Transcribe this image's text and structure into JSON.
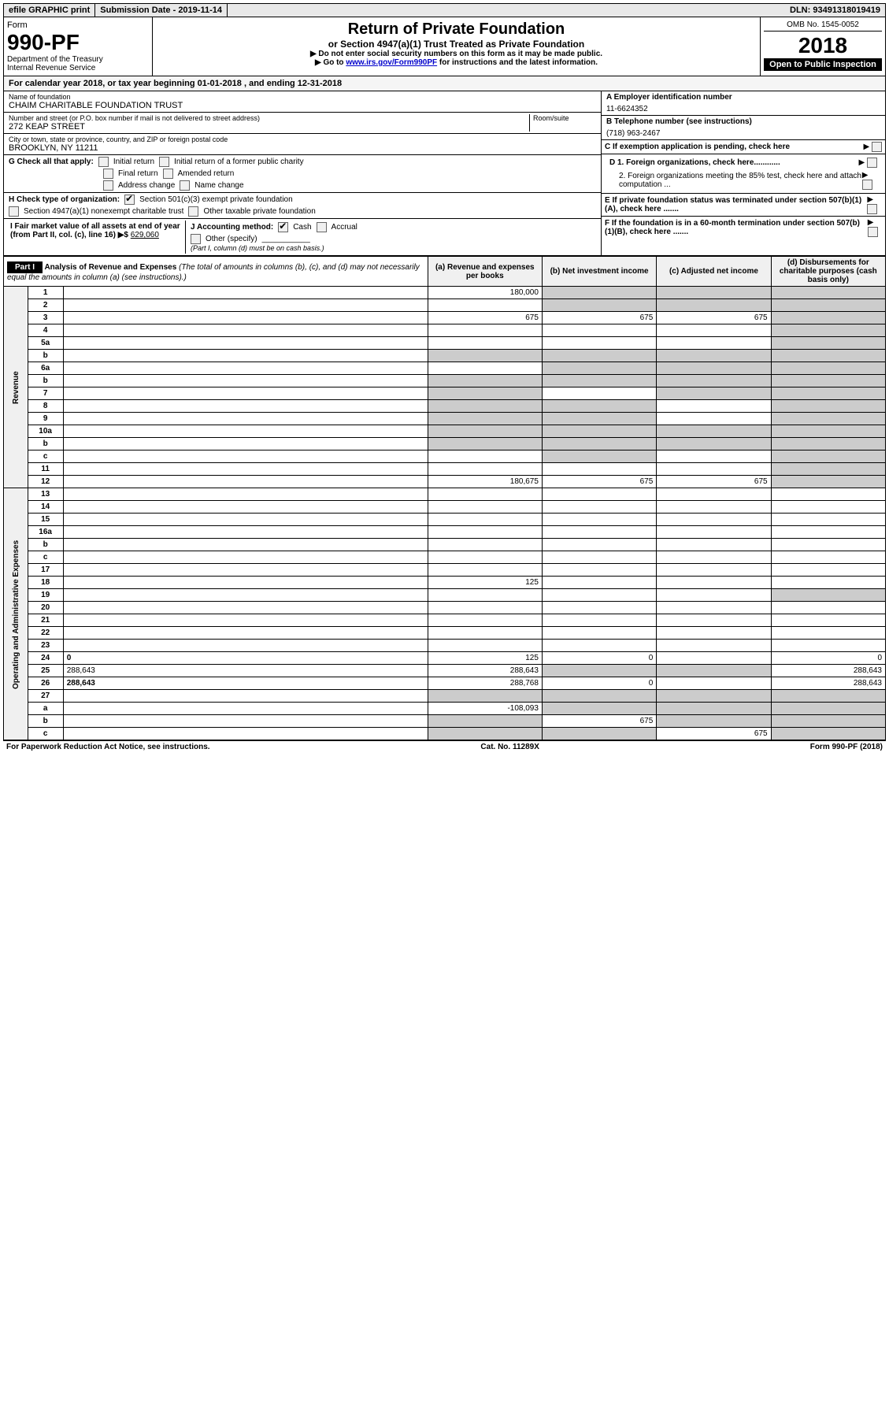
{
  "topbar": {
    "efile": "efile GRAPHIC print",
    "submission": "Submission Date - 2019-11-14",
    "dln": "DLN: 93491318019419"
  },
  "header": {
    "form_word": "Form",
    "form_number": "990-PF",
    "dept": "Department of the Treasury",
    "irs": "Internal Revenue Service",
    "title": "Return of Private Foundation",
    "subtitle": "or Section 4947(a)(1) Trust Treated as Private Foundation",
    "instr1": "▶ Do not enter social security numbers on this form as it may be made public.",
    "instr2_pre": "▶ Go to ",
    "instr2_link": "www.irs.gov/Form990PF",
    "instr2_post": " for instructions and the latest information.",
    "omb": "OMB No. 1545-0052",
    "year": "2018",
    "open": "Open to Public Inspection"
  },
  "calyear": "For calendar year 2018, or tax year beginning 01-01-2018               , and ending 12-31-2018",
  "foundation": {
    "name_label": "Name of foundation",
    "name": "CHAIM CHARITABLE FOUNDATION TRUST",
    "addr_label": "Number and street (or P.O. box number if mail is not delivered to street address)",
    "addr": "272 KEAP STREET",
    "room_label": "Room/suite",
    "city_label": "City or town, state or province, country, and ZIP or foreign postal code",
    "city": "BROOKLYN, NY  11211"
  },
  "right_info": {
    "a_label": "A Employer identification number",
    "a_value": "11-6624352",
    "b_label": "B Telephone number (see instructions)",
    "b_value": "(718) 963-2467",
    "c_label": "C If exemption application is pending, check here",
    "d1_label": "D 1. Foreign organizations, check here............",
    "d2_label": "2. Foreign organizations meeting the 85% test, check here and attach computation ...",
    "e_label": "E  If private foundation status was terminated under section 507(b)(1)(A), check here .......",
    "f_label": "F  If the foundation is in a 60-month termination under section 507(b)(1)(B), check here ......."
  },
  "checks": {
    "g_label": "G Check all that apply:",
    "initial": "Initial return",
    "initial_former": "Initial return of a former public charity",
    "final": "Final return",
    "amended": "Amended return",
    "addr_change": "Address change",
    "name_change": "Name change",
    "h_label": "H Check type of organization:",
    "h_501c3": "Section 501(c)(3) exempt private foundation",
    "h_4947": "Section 4947(a)(1) nonexempt charitable trust",
    "h_other": "Other taxable private foundation",
    "i_label": "I Fair market value of all assets at end of year (from Part II, col. (c), line 16) ▶$",
    "i_value": "629,060",
    "j_label": "J Accounting method:",
    "j_cash": "Cash",
    "j_accrual": "Accrual",
    "j_other": "Other (specify)",
    "j_note": "(Part I, column (d) must be on cash basis.)"
  },
  "part1": {
    "label": "Part I",
    "title": "Analysis of Revenue and Expenses",
    "note": " (The total of amounts in columns (b), (c), and (d) may not necessarily equal the amounts in column (a) (see instructions).)",
    "col_a": "(a)   Revenue and expenses per books",
    "col_b": "(b)  Net investment income",
    "col_c": "(c)  Adjusted net income",
    "col_d": "(d)  Disbursements for charitable purposes (cash basis only)"
  },
  "sections": {
    "revenue": "Revenue",
    "expenses": "Operating and Administrative Expenses"
  },
  "rows": [
    {
      "n": "1",
      "d": "",
      "a": "180,000",
      "b": "",
      "c": "",
      "sb": true,
      "sc": true,
      "sd": true
    },
    {
      "n": "2",
      "d": "",
      "a": "",
      "b": "",
      "c": "",
      "sb": true,
      "sc": true,
      "sd": true
    },
    {
      "n": "3",
      "d": "",
      "a": "675",
      "b": "675",
      "c": "675",
      "sd": true
    },
    {
      "n": "4",
      "d": "",
      "a": "",
      "b": "",
      "c": "",
      "sd": true
    },
    {
      "n": "5a",
      "d": "",
      "a": "",
      "b": "",
      "c": "",
      "sd": true
    },
    {
      "n": "b",
      "d": "",
      "a": "",
      "b": "",
      "c": "",
      "sa": true,
      "sb": true,
      "sc": true,
      "sd": true
    },
    {
      "n": "6a",
      "d": "",
      "a": "",
      "b": "",
      "c": "",
      "sb": true,
      "sc": true,
      "sd": true
    },
    {
      "n": "b",
      "d": "",
      "a": "",
      "b": "",
      "c": "",
      "sa": true,
      "sb": true,
      "sc": true,
      "sd": true
    },
    {
      "n": "7",
      "d": "",
      "a": "",
      "b": "",
      "c": "",
      "sa": true,
      "sc": true,
      "sd": true
    },
    {
      "n": "8",
      "d": "",
      "a": "",
      "b": "",
      "c": "",
      "sa": true,
      "sb": true,
      "sd": true
    },
    {
      "n": "9",
      "d": "",
      "a": "",
      "b": "",
      "c": "",
      "sa": true,
      "sb": true,
      "sd": true
    },
    {
      "n": "10a",
      "d": "",
      "a": "",
      "b": "",
      "c": "",
      "sa": true,
      "sb": true,
      "sc": true,
      "sd": true
    },
    {
      "n": "b",
      "d": "",
      "a": "",
      "b": "",
      "c": "",
      "sa": true,
      "sb": true,
      "sc": true,
      "sd": true
    },
    {
      "n": "c",
      "d": "",
      "a": "",
      "b": "",
      "c": "",
      "sb": true,
      "sd": true
    },
    {
      "n": "11",
      "d": "",
      "a": "",
      "b": "",
      "c": "",
      "sd": true
    },
    {
      "n": "12",
      "d": "",
      "a": "180,675",
      "b": "675",
      "c": "675",
      "bold": true,
      "sd": true
    },
    {
      "n": "13",
      "d": "",
      "a": "",
      "b": "",
      "c": "",
      "sec": "exp"
    },
    {
      "n": "14",
      "d": "",
      "a": "",
      "b": "",
      "c": ""
    },
    {
      "n": "15",
      "d": "",
      "a": "",
      "b": "",
      "c": ""
    },
    {
      "n": "16a",
      "d": "",
      "a": "",
      "b": "",
      "c": ""
    },
    {
      "n": "b",
      "d": "",
      "a": "",
      "b": "",
      "c": ""
    },
    {
      "n": "c",
      "d": "",
      "a": "",
      "b": "",
      "c": ""
    },
    {
      "n": "17",
      "d": "",
      "a": "",
      "b": "",
      "c": ""
    },
    {
      "n": "18",
      "d": "",
      "a": "125",
      "b": "",
      "c": ""
    },
    {
      "n": "19",
      "d": "",
      "a": "",
      "b": "",
      "c": "",
      "sd": true
    },
    {
      "n": "20",
      "d": "",
      "a": "",
      "b": "",
      "c": ""
    },
    {
      "n": "21",
      "d": "",
      "a": "",
      "b": "",
      "c": ""
    },
    {
      "n": "22",
      "d": "",
      "a": "",
      "b": "",
      "c": ""
    },
    {
      "n": "23",
      "d": "",
      "a": "",
      "b": "",
      "c": ""
    },
    {
      "n": "24",
      "d": "0",
      "a": "125",
      "b": "0",
      "c": "",
      "bold": true
    },
    {
      "n": "25",
      "d": "288,643",
      "a": "288,643",
      "b": "",
      "c": "",
      "sb": true,
      "sc": true
    },
    {
      "n": "26",
      "d": "288,643",
      "a": "288,768",
      "b": "0",
      "c": "",
      "bold": true
    },
    {
      "n": "27",
      "d": "",
      "a": "",
      "b": "",
      "c": "",
      "sa": true,
      "sb": true,
      "sc": true,
      "sd": true,
      "noborder": true
    },
    {
      "n": "a",
      "d": "",
      "a": "-108,093",
      "b": "",
      "c": "",
      "bold": true,
      "sb": true,
      "sc": true,
      "sd": true
    },
    {
      "n": "b",
      "d": "",
      "a": "",
      "b": "675",
      "c": "",
      "bold": true,
      "sa": true,
      "sc": true,
      "sd": true
    },
    {
      "n": "c",
      "d": "",
      "a": "",
      "b": "",
      "c": "675",
      "bold": true,
      "sa": true,
      "sb": true,
      "sd": true
    }
  ],
  "footer": {
    "left": "For Paperwork Reduction Act Notice, see instructions.",
    "center": "Cat. No. 11289X",
    "right": "Form 990-PF (2018)"
  }
}
